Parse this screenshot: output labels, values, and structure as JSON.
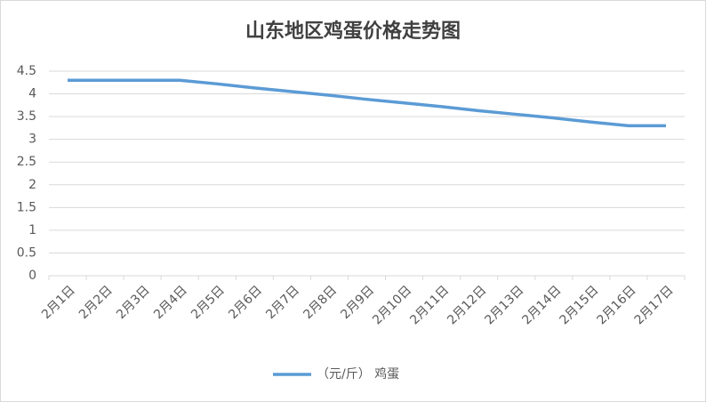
{
  "chart_data": {
    "type": "line",
    "title": "山东地区鸡蛋价格走势图",
    "categories": [
      "2月1日",
      "2月2日",
      "2月3日",
      "2月4日",
      "2月5日",
      "2月6日",
      "2月7日",
      "2月8日",
      "2月9日",
      "2月10日",
      "2月11日",
      "2月12日",
      "2月13日",
      "2月14日",
      "2月15日",
      "2月16日",
      "2月17日"
    ],
    "series": [
      {
        "name": "（元/斤） 鸡蛋",
        "color": "#5b9bd5",
        "values": [
          4.3,
          4.3,
          4.3,
          4.3,
          4.22,
          4.13,
          4.05,
          3.97,
          3.88,
          3.8,
          3.72,
          3.63,
          3.55,
          3.47,
          3.38,
          3.3,
          3.3
        ]
      }
    ],
    "ylim": [
      0,
      4.5
    ],
    "yticks": [
      0,
      0.5,
      1,
      1.5,
      2,
      2.5,
      3,
      3.5,
      4,
      4.5
    ],
    "grid": true,
    "legend": "bottom"
  }
}
